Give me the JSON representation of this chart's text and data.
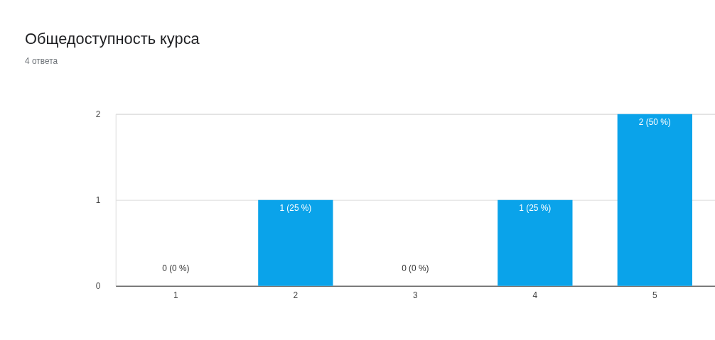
{
  "chart_data": {
    "type": "bar",
    "title": "Общедоступность курса",
    "subtitle": "4 ответа",
    "categories": [
      "1",
      "2",
      "3",
      "4",
      "5"
    ],
    "values": [
      0,
      1,
      0,
      1,
      2
    ],
    "value_labels": [
      "0 (0 %)",
      "1 (25 %)",
      "0 (0 %)",
      "1 (25 %)",
      "2 (50 %)"
    ],
    "color": "#0aa3ea",
    "ylim": [
      0,
      2
    ],
    "yticks": [
      0,
      1,
      2
    ],
    "grid": "y"
  }
}
